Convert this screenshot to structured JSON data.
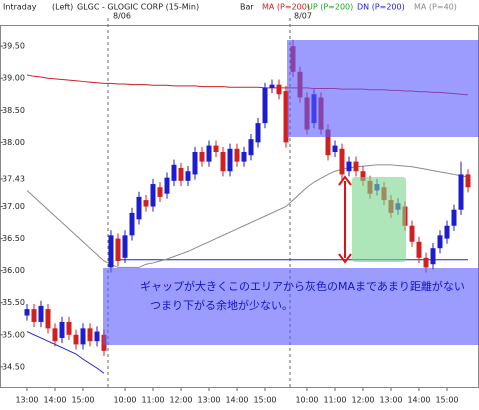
{
  "chart_data": {
    "type": "candlestick",
    "header": [
      "Intraday",
      "(Left)",
      "GLGC - GLOGIC CORP (15-Min)",
      "Bar"
    ],
    "dates": [
      "8/06",
      "8/07"
    ],
    "annotations": [
      "ギャップが大きくこのエリアから灰色のMAまであまり距離がない",
      "つまり下がる余地が少ない。"
    ],
    "categories": [
      "13:00",
      null,
      null,
      null,
      "14:00",
      null,
      null,
      null,
      "15:00",
      null,
      null,
      null,
      null,
      null,
      "10:00",
      null,
      null,
      null,
      "11:00",
      null,
      null,
      null,
      "12:00",
      null,
      null,
      null,
      "13:00",
      null,
      null,
      null,
      "14:00",
      null,
      null,
      null,
      "15:00",
      null,
      null,
      null,
      null,
      null,
      "10:00",
      null,
      null,
      null,
      "11:00",
      null,
      null,
      null,
      "12:00",
      null,
      null,
      null,
      "13:00",
      null,
      null,
      null,
      "14:00",
      null,
      null,
      null,
      "15:00",
      null,
      null,
      null
    ],
    "up_color": "#1c1cd0",
    "down_color": "#d02020",
    "open": [
      35.3,
      35.4,
      35.2,
      35.4,
      35.1,
      34.95,
      35.2,
      35.0,
      34.85,
      35.1,
      34.9,
      35.0,
      36.05,
      36.5,
      36.2,
      36.55,
      36.8,
      37.1,
      37.0,
      37.3,
      37.2,
      37.4,
      37.6,
      37.4,
      37.5,
      37.85,
      37.7,
      37.95,
      37.85,
      37.55,
      37.9,
      37.7,
      37.8,
      38.0,
      38.3,
      38.85,
      38.9,
      38.8,
      39.5,
      39.1,
      38.7,
      38.3,
      38.7,
      38.2,
      37.85,
      37.9,
      37.55,
      37.7,
      37.55,
      37.4,
      37.25,
      37.3,
      37.1,
      36.95,
      37.0,
      36.7,
      36.45,
      36.2,
      36.1,
      36.35,
      36.5,
      36.7,
      36.95,
      37.5
    ],
    "high": [
      35.48,
      35.48,
      35.53,
      35.48,
      35.18,
      35.28,
      35.28,
      35.08,
      35.18,
      35.18,
      35.13,
      35.08,
      36.63,
      36.58,
      36.63,
      36.98,
      37.23,
      37.18,
      37.43,
      37.38,
      37.53,
      37.73,
      37.68,
      37.63,
      37.93,
      37.93,
      38.03,
      38.03,
      37.93,
      37.98,
      37.98,
      37.93,
      38.13,
      38.38,
      38.93,
      38.98,
      38.98,
      38.88,
      39.6,
      39.18,
      38.78,
      38.83,
      38.78,
      38.28,
      38.03,
      37.98,
      37.78,
      37.78,
      37.63,
      37.48,
      37.43,
      37.38,
      37.18,
      37.13,
      37.08,
      36.78,
      36.53,
      36.28,
      36.43,
      36.63,
      36.78,
      37.03,
      37.7,
      37.58
    ],
    "low": [
      35.22,
      35.12,
      35.12,
      35.02,
      34.82,
      34.87,
      34.92,
      34.77,
      34.77,
      34.82,
      34.82,
      34.67,
      35.97,
      36.07,
      36.12,
      36.47,
      36.72,
      36.92,
      36.92,
      37.07,
      37.12,
      37.32,
      37.32,
      37.32,
      37.42,
      37.62,
      37.62,
      37.77,
      37.47,
      37.47,
      37.62,
      37.62,
      37.72,
      37.92,
      38.22,
      38.77,
      38.67,
      37.92,
      39.02,
      38.62,
      38.12,
      38.22,
      38.12,
      37.72,
      37.77,
      37.42,
      37.47,
      37.47,
      37.32,
      37.12,
      37.17,
      37.02,
      36.82,
      36.87,
      36.62,
      36.37,
      36.12,
      35.97,
      36.02,
      36.27,
      36.42,
      36.62,
      36.87,
      37.22
    ],
    "close": [
      35.4,
      35.2,
      35.45,
      35.1,
      34.9,
      35.2,
      35.0,
      34.85,
      35.1,
      34.9,
      35.05,
      34.75,
      36.55,
      36.15,
      36.55,
      36.9,
      37.15,
      37.0,
      37.35,
      37.15,
      37.45,
      37.65,
      37.4,
      37.55,
      37.85,
      37.7,
      37.95,
      37.85,
      37.55,
      37.9,
      37.7,
      37.85,
      38.05,
      38.3,
      38.85,
      38.9,
      38.75,
      38.0,
      39.1,
      38.7,
      38.2,
      38.75,
      38.2,
      37.8,
      37.95,
      37.5,
      37.7,
      37.55,
      37.4,
      37.2,
      37.35,
      37.1,
      36.9,
      37.05,
      36.7,
      36.45,
      36.2,
      36.05,
      36.35,
      36.55,
      36.7,
      36.95,
      37.5,
      37.3
    ],
    "series": [
      {
        "name": "MA (P=200)",
        "color": "#cc2020",
        "values": [
          39.05,
          39.03,
          39.02,
          39.0,
          38.99,
          38.98,
          38.97,
          38.96,
          38.95,
          38.94,
          38.93,
          38.92,
          38.92,
          38.91,
          38.91,
          38.9,
          38.9,
          38.9,
          38.89,
          38.89,
          38.89,
          38.88,
          38.88,
          38.88,
          38.88,
          38.87,
          38.87,
          38.87,
          38.87,
          38.86,
          38.86,
          38.86,
          38.86,
          38.86,
          38.85,
          38.85,
          38.85,
          38.85,
          38.85,
          38.85,
          38.85,
          38.84,
          38.84,
          38.84,
          38.84,
          38.83,
          38.83,
          38.83,
          38.83,
          38.82,
          38.82,
          38.82,
          38.81,
          38.81,
          38.8,
          38.8,
          38.79,
          38.79,
          38.78,
          38.78,
          38.77,
          38.76,
          38.75,
          38.74
        ]
      },
      {
        "name": "UP (P=200)",
        "color": "#20a020",
        "values": [
          null,
          null,
          null,
          null,
          null,
          null,
          null,
          null,
          null,
          null,
          null,
          null,
          null,
          null,
          null,
          null,
          null,
          null,
          null,
          null,
          null,
          null,
          null,
          null,
          null,
          null,
          null,
          null,
          null,
          null,
          null,
          null,
          null,
          null,
          null,
          null,
          null,
          null,
          null,
          null,
          null,
          null,
          null,
          null,
          null,
          null,
          null,
          null,
          null,
          null,
          null,
          null,
          null,
          null,
          null,
          null,
          null,
          null,
          null,
          null,
          null,
          null,
          null,
          null
        ]
      },
      {
        "name": "DN (P=200)",
        "color": "#2020e0",
        "values": [
          35.05,
          35.0,
          34.95,
          34.9,
          34.85,
          34.8,
          34.75,
          34.7,
          34.62,
          34.55,
          34.48,
          34.4,
          null,
          36.17,
          36.17,
          36.17,
          36.17,
          36.17,
          36.17,
          36.17,
          36.17,
          36.17,
          36.17,
          36.17,
          36.17,
          36.17,
          36.17,
          36.17,
          36.17,
          36.17,
          36.17,
          36.17,
          36.17,
          36.17,
          36.17,
          36.17,
          36.17,
          36.17,
          36.17,
          36.17,
          36.17,
          36.17,
          36.17,
          36.17,
          36.17,
          36.17,
          36.17,
          36.17,
          36.17,
          36.17,
          36.17,
          36.17,
          36.17,
          36.17,
          36.17,
          36.17,
          36.17,
          36.17,
          36.17,
          36.17,
          36.17,
          36.17,
          36.17,
          36.17
        ]
      },
      {
        "name": "MA (P=40)",
        "color": "#8a8a8a",
        "values": [
          37.25,
          37.15,
          37.05,
          36.95,
          36.85,
          36.75,
          36.65,
          36.55,
          36.45,
          36.35,
          36.25,
          36.15,
          36.1,
          36.05,
          36.05,
          36.05,
          36.05,
          36.1,
          36.12,
          36.15,
          36.18,
          36.22,
          36.26,
          36.3,
          36.35,
          36.4,
          36.45,
          36.5,
          36.55,
          36.6,
          36.65,
          36.7,
          36.75,
          36.8,
          36.85,
          36.9,
          36.95,
          37.0,
          37.1,
          37.2,
          37.3,
          37.38,
          37.44,
          37.5,
          37.55,
          37.58,
          37.6,
          37.62,
          37.63,
          37.64,
          37.65,
          37.65,
          37.65,
          37.64,
          37.63,
          37.62,
          37.6,
          37.58,
          37.56,
          37.54,
          37.52,
          37.5,
          37.48,
          37.46
        ]
      }
    ],
    "ylim": [
      34.17,
      39.83
    ],
    "yticks": [
      {
        "value": 34.5,
        "label": "34.50"
      },
      {
        "value": 35,
        "label": "35.00"
      },
      {
        "value": 35.5,
        "label": "35.50"
      },
      {
        "value": 36,
        "label": "36.00"
      },
      {
        "value": 36.5,
        "label": "36.50"
      },
      {
        "value": 37,
        "label": "37.00"
      },
      37.43,
      {
        "value": 38,
        "label": "38.00"
      },
      {
        "value": 38.5,
        "label": "38.50"
      },
      {
        "value": 39,
        "label": "39.00"
      },
      {
        "value": 39.5,
        "label": "39.50"
      }
    ],
    "grid": false
  }
}
